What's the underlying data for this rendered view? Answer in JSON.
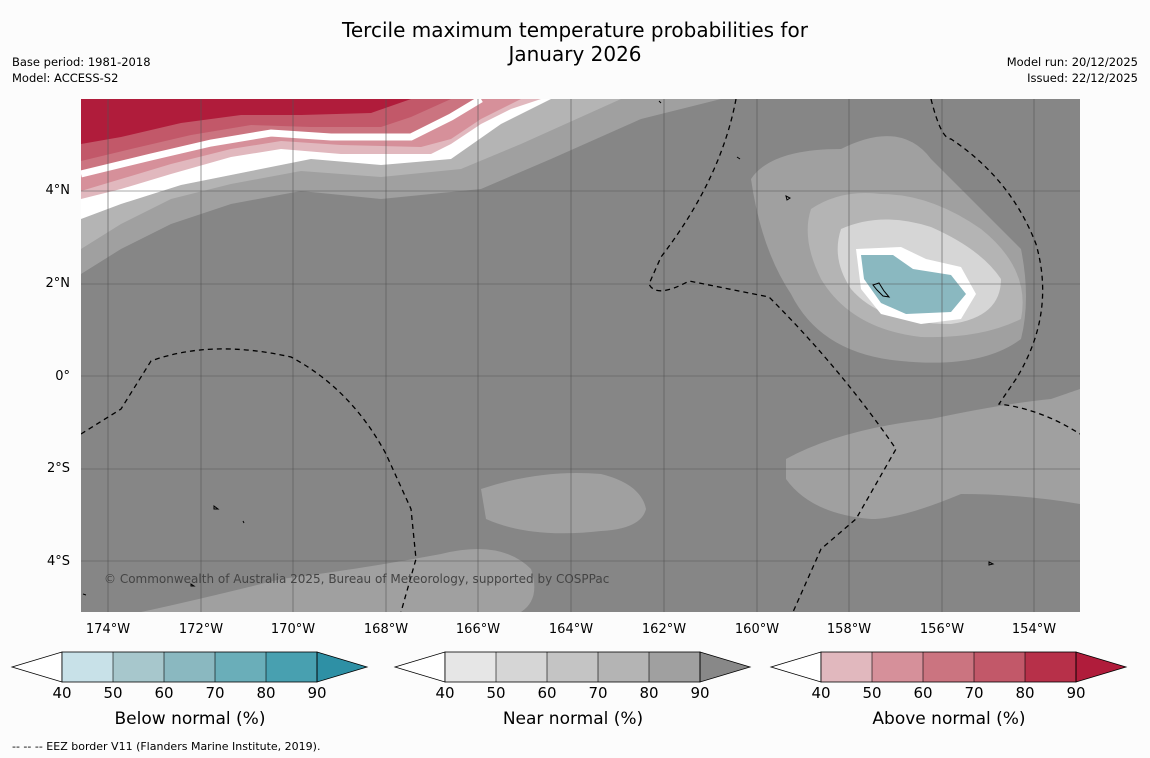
{
  "title": {
    "line1": "Tercile maximum temperature probabilities for",
    "line2": "January 2026"
  },
  "meta": {
    "base_period": "Base period: 1981-2018",
    "model": "Model: ACCESS-S2",
    "model_run": "Model run: 20/12/2025",
    "issued": "Issued: 22/12/2025"
  },
  "lat_labels": [
    "4°N",
    "2°N",
    "0°",
    "2°S",
    "4°S"
  ],
  "lon_labels": [
    "174°W",
    "172°W",
    "170°W",
    "168°W",
    "166°W",
    "164°W",
    "162°W",
    "160°W",
    "158°W",
    "156°W",
    "154°W"
  ],
  "copyright": "© Commonwealth of Australia 2025, Bureau of Meteorology, supported by COSPPac",
  "colorbars": [
    {
      "label": "Below normal (%)",
      "ticks": [
        "40",
        "50",
        "60",
        "70",
        "80",
        "90"
      ],
      "colors": [
        "#ffffff",
        "#c8e1e8",
        "#a7c7cc",
        "#8ab8c0",
        "#6aaeb9",
        "#48a0b0",
        "#2e90a5"
      ]
    },
    {
      "label": "Near normal (%)",
      "ticks": [
        "40",
        "50",
        "60",
        "70",
        "80",
        "90"
      ],
      "colors": [
        "#ffffff",
        "#e6e6e6",
        "#d6d6d6",
        "#c4c4c4",
        "#b4b4b4",
        "#a0a0a0",
        "#888888"
      ]
    },
    {
      "label": "Above normal (%)",
      "ticks": [
        "40",
        "50",
        "60",
        "70",
        "80",
        "90"
      ],
      "colors": [
        "#ffffff",
        "#e1b8be",
        "#d6909a",
        "#cb7480",
        "#c25869",
        "#b73049",
        "#b01c3b"
      ]
    }
  ],
  "footnote": "--  --  -- EEZ border V11 (Flanders Marine Institute, 2019).",
  "colors": {
    "base_gray": "#868686",
    "above_dark": "#b01c3b",
    "below_teal": "#8ab8c0"
  }
}
